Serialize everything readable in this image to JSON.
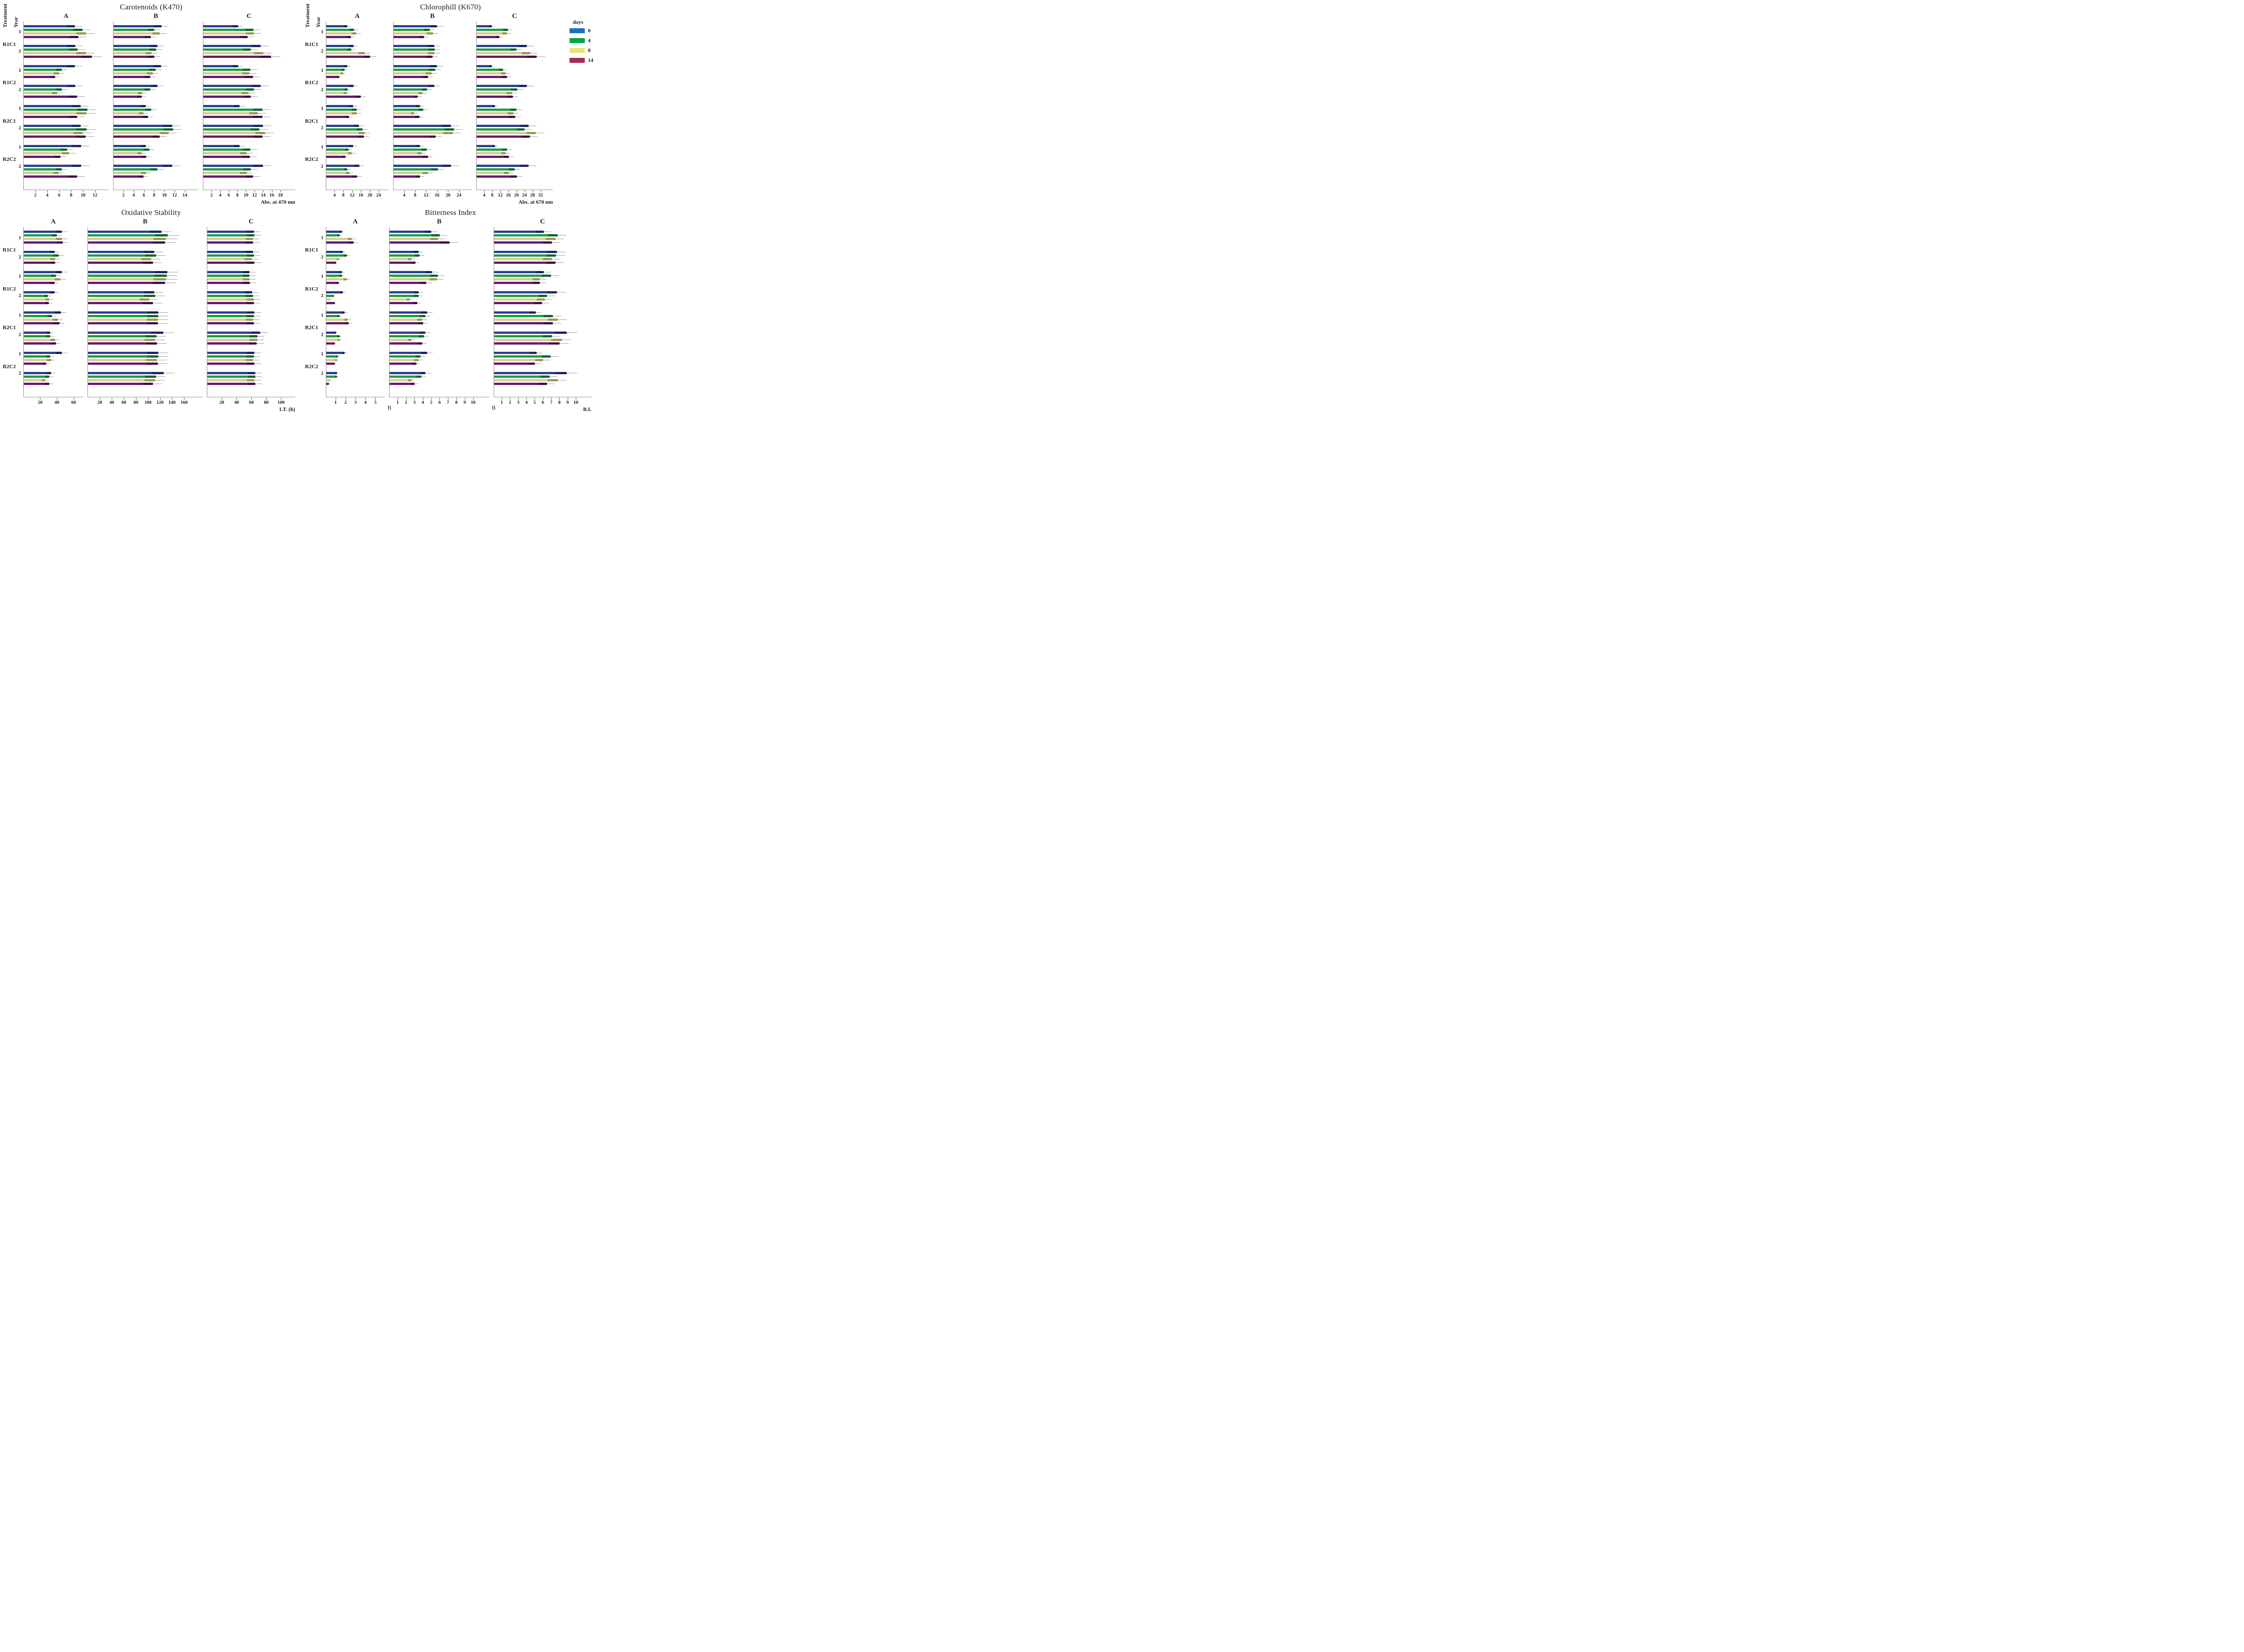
{
  "page": {
    "background": "#ffffff"
  },
  "labels": {
    "treatment_header": "Treatment",
    "year_header": "Year",
    "treatments": [
      "R1C1",
      "R1C2",
      "R2C1",
      "R2C2"
    ],
    "years": [
      "1",
      "2"
    ]
  },
  "legend": {
    "title": "days",
    "entries": [
      {
        "label": "0",
        "color": "#1b70c6"
      },
      {
        "label": "4",
        "color": "#00a44d"
      },
      {
        "label": "8",
        "color": "#e9e27b"
      },
      {
        "label": "14",
        "color": "#a72c55"
      }
    ]
  },
  "bar_colors": [
    {
      "day": "0",
      "fill": "#2c3e92",
      "tip": "#1a2560"
    },
    {
      "day": "4",
      "fill": "#1d9c44",
      "tip": "#0c662b"
    },
    {
      "day": "8",
      "fill": "#d6ce92",
      "tip": "#9e9757"
    },
    {
      "day": "14",
      "fill": "#671a70",
      "tip": "#3f0f47"
    }
  ],
  "chart_data": [
    {
      "id": "carotenoids",
      "type": "bar",
      "title": "Carotenoids (K470)",
      "show_axis_headers": true,
      "days": [
        "0",
        "4",
        "8",
        "14"
      ],
      "group_order": [
        "R1C1-1",
        "R1C1-2",
        "R1C2-1",
        "R1C2-2",
        "R2C1-1",
        "R2C1-2",
        "R2C2-1",
        "R2C2-2"
      ],
      "panels": [
        {
          "label": "A",
          "xmax": 12,
          "xstep": 2,
          "w": 1,
          "groups": [
            [
              8.6,
              9.9,
              10.5,
              9.2
            ],
            [
              8.7,
              9.1,
              10.5,
              11.5
            ],
            [
              8.6,
              6.4,
              6.0,
              5.3
            ],
            [
              8.7,
              6.4,
              5.7,
              9.0
            ],
            [
              9.6,
              10.7,
              10.6,
              9.0
            ],
            [
              9.6,
              10.6,
              10.0,
              10.4
            ],
            [
              9.7,
              7.3,
              7.6,
              6.2
            ],
            [
              9.7,
              6.4,
              5.9,
              9.0
            ]
          ]
        },
        {
          "label": "B",
          "xmax": 14,
          "xstep": 2,
          "w": 1,
          "groups": [
            [
              9.4,
              8.0,
              9.1,
              7.3
            ],
            [
              8.6,
              8.4,
              7.5,
              8.0
            ],
            [
              9.3,
              8.3,
              7.7,
              7.2
            ],
            [
              8.6,
              7.2,
              5.6,
              5.5
            ],
            [
              6.3,
              7.4,
              5.9,
              6.8
            ],
            [
              11.5,
              11.7,
              10.8,
              9.1
            ],
            [
              6.3,
              7.0,
              5.5,
              6.4
            ],
            [
              11.5,
              8.6,
              6.4,
              5.9
            ]
          ]
        },
        {
          "label": "C",
          "xmax": 18,
          "xstep": 2,
          "w": 1.08,
          "xlabel": "Abs. at 470 nm",
          "groups": [
            [
              8.1,
              11.7,
              11.8,
              10.4
            ],
            [
              13.4,
              11.1,
              14.0,
              15.8
            ],
            [
              8.1,
              11.0,
              10.8,
              11.6
            ],
            [
              13.4,
              11.8,
              10.6,
              11.1
            ],
            [
              8.5,
              13.8,
              12.8,
              13.8
            ],
            [
              13.9,
              13.1,
              14.4,
              13.8
            ],
            [
              8.5,
              11.0,
              10.1,
              10.9
            ],
            [
              13.9,
              11.1,
              10.1,
              11.6
            ]
          ]
        }
      ]
    },
    {
      "id": "chlorophill",
      "type": "bar",
      "title": "Chlorophill (K670)",
      "show_axis_headers": true,
      "days": [
        "0",
        "4",
        "8",
        "14"
      ],
      "group_order": [
        "R1C1-1",
        "R1C1-2",
        "R1C2-1",
        "R1C2-2",
        "R2C1-1",
        "R2C1-2",
        "R2C2-1",
        "R2C2-2"
      ],
      "panels": [
        {
          "label": "A",
          "xmax": 24,
          "xstep": 4,
          "w": 0.82,
          "groups": [
            [
              9.7,
              12.8,
              13.9,
              11.4
            ],
            [
              12.5,
              11.6,
              17.7,
              20.2
            ],
            [
              9.7,
              8.5,
              7.8,
              6.0
            ],
            [
              12.5,
              10.0,
              9.5,
              15.8
            ],
            [
              12.4,
              14.0,
              14.1,
              10.5
            ],
            [
              15.1,
              16.6,
              17.7,
              17.2
            ],
            [
              12.4,
              10.4,
              11.8,
              8.8
            ],
            [
              15.2,
              9.8,
              10.8,
              14.2
            ]
          ]
        },
        {
          "label": "B",
          "xmax": 24,
          "xstep": 4,
          "w": 1.02,
          "groups": [
            [
              16.0,
              13.3,
              14.4,
              11.1
            ],
            [
              14.9,
              15.2,
              14.9,
              14.3
            ],
            [
              16.0,
              15.3,
              13.9,
              12.6
            ],
            [
              14.9,
              12.3,
              10.7,
              8.9
            ],
            [
              9.7,
              10.9,
              7.6,
              9.6
            ],
            [
              21.0,
              22.2,
              21.7,
              15.4
            ],
            [
              9.7,
              12.2,
              10.4,
              12.6
            ],
            [
              21.1,
              16.2,
              12.6,
              9.7
            ]
          ]
        },
        {
          "label": "C",
          "xmax": 32,
          "xstep": 4,
          "w": 1.0,
          "xlabel": "Abs. at 670 nm",
          "groups": [
            [
              7.7,
              15.8,
              15.2,
              11.5
            ],
            [
              25.2,
              19.9,
              26.8,
              30.0
            ],
            [
              7.7,
              13.2,
              14.7,
              15.3
            ],
            [
              25.2,
              20.4,
              17.7,
              18.1
            ],
            [
              9.2,
              20.0,
              18.4,
              19.4
            ],
            [
              26.1,
              24.1,
              29.6,
              26.7
            ],
            [
              9.2,
              15.3,
              14.6,
              16.2
            ],
            [
              26.1,
              19.0,
              16.2,
              20.1
            ]
          ]
        }
      ]
    },
    {
      "id": "oxidative-stability",
      "type": "bar",
      "title": "Oxidative Stability",
      "show_axis_headers": false,
      "days": [
        "0",
        "4",
        "8",
        "14"
      ],
      "group_order": [
        "R1C1-1",
        "R1C1-2",
        "R1C2-1",
        "R1C2-2",
        "R2C1-1",
        "R2C1-2",
        "R2C2-1",
        "R2C2-2"
      ],
      "panels": [
        {
          "label": "A",
          "xmax": 60,
          "xstep": 20,
          "w": 0.72,
          "groups": [
            [
              46,
              40,
              46,
              47
            ],
            [
              37,
              42,
              38,
              38
            ],
            [
              46,
              39,
              44,
              37
            ],
            [
              37,
              29,
              31,
              30
            ],
            [
              45,
              34,
              41,
              43
            ],
            [
              32,
              32,
              38,
              39
            ],
            [
              46,
              32,
              33,
              27
            ],
            [
              33,
              31,
              26,
              31
            ]
          ]
        },
        {
          "label": "B",
          "xmax": 160,
          "xstep": 20,
          "w": 1.38,
          "groups": [
            [
              122,
              133,
              130,
              128
            ],
            [
              110,
              113,
              105,
              108
            ],
            [
              132,
              131,
              130,
              128
            ],
            [
              110,
              112,
              102,
              108
            ],
            [
              117,
              117,
              116,
              116
            ],
            [
              125,
              114,
              112,
              115
            ],
            [
              117,
              117,
              115,
              116
            ],
            [
              126,
              113,
              112,
              108
            ]
          ]
        },
        {
          "label": "C",
          "xmax": 100,
          "xstep": 20,
          "w": 1.06,
          "xlabel": "I.T. (h)",
          "groups": [
            [
              63,
              64,
              62,
              62
            ],
            [
              62,
              63,
              60,
              64
            ],
            [
              57,
              57,
              57,
              58
            ],
            [
              61,
              62,
              63,
              63
            ],
            [
              64,
              63,
              62,
              63
            ],
            [
              72,
              68,
              68,
              67
            ],
            [
              64,
              63,
              62,
              64
            ],
            [
              65,
              65,
              64,
              65
            ]
          ]
        }
      ]
    },
    {
      "id": "bitterness-index",
      "type": "bar",
      "title": "Bitterness Index",
      "show_axis_headers": false,
      "days": [
        "0",
        "4",
        "8",
        "14"
      ],
      "group_order": [
        "R1C1-1",
        "R1C1-2",
        "R1C2-1",
        "R1C2-2",
        "R2C1-1",
        "R2C1-2",
        "R2C2-1",
        "R2C2-2"
      ],
      "panels": [
        {
          "label": "A",
          "xmax": 5,
          "xstep": 1,
          "w": 0.64,
          "groups": [
            [
              1.6,
              1.4,
              2.6,
              2.8
            ],
            [
              1.7,
              2.1,
              1.3,
              1.0
            ],
            [
              1.6,
              1.6,
              2.1,
              1.3
            ],
            [
              1.7,
              0.8,
              0.4,
              0.9
            ],
            [
              1.9,
              1.4,
              2.2,
              2.3
            ],
            [
              1.0,
              1.4,
              1.4,
              0.9
            ],
            [
              1.9,
              1.2,
              1.1,
              0.9
            ],
            [
              1.1,
              1.1,
              0.4,
              0.3
            ]
          ]
        },
        {
          "label": "B",
          "xmax": 10,
          "xstep": 1,
          "w": 1.08,
          "corner_label": "B",
          "groups": [
            [
              5.0,
              6.0,
              5.8,
              7.2
            ],
            [
              3.5,
              3.6,
              2.6,
              3.1
            ],
            [
              5.1,
              5.8,
              5.7,
              4.4
            ],
            [
              3.5,
              3.5,
              2.4,
              3.3
            ],
            [
              4.5,
              4.3,
              3.9,
              4.0
            ],
            [
              4.3,
              4.1,
              2.6,
              3.9
            ],
            [
              4.5,
              3.7,
              3.5,
              3.2
            ],
            [
              4.3,
              3.8,
              2.6,
              3.0
            ]
          ]
        },
        {
          "label": "C",
          "xmax": 10,
          "xstep": 1,
          "w": 1.06,
          "corner_label": "B",
          "xlabel": "B.I.",
          "groups": [
            [
              6.1,
              7.8,
              7.5,
              7.1
            ],
            [
              7.7,
              7.6,
              7.1,
              7.5
            ],
            [
              6.1,
              7.0,
              5.6,
              5.6
            ],
            [
              7.7,
              6.5,
              6.2,
              5.9
            ],
            [
              5.1,
              7.2,
              7.8,
              7.2
            ],
            [
              8.9,
              7.1,
              8.3,
              8.0
            ],
            [
              5.2,
              6.9,
              6.0,
              5.0
            ],
            [
              8.9,
              6.8,
              7.8,
              6.5
            ]
          ]
        }
      ]
    }
  ]
}
